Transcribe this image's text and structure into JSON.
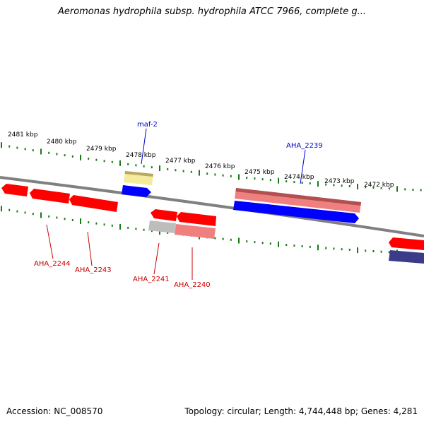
{
  "title": "Aeromonas hydrophila subsp. hydrophila ATCC 7966, complete g...",
  "footer": {
    "accession": "Accession: NC_008570",
    "summary": "Topology: circular; Length: 4,744,448 bp; Genes: 4,281"
  },
  "ruler": {
    "labels": [
      "2481 kbp",
      "2480 kbp",
      "2479 kbp",
      "2478 kbp",
      "2477 kbp",
      "2476 kbp",
      "2475 kbp",
      "2474 kbp",
      "2473 kbp",
      "2472 kbp"
    ]
  },
  "genes": {
    "labels": [
      "maf-2",
      "AHA_2239",
      "AHA_2244",
      "AHA_2243",
      "AHA_2241",
      "AHA_2240"
    ]
  },
  "colors": {
    "backbone": "#808080",
    "tick": "#1a7a1a",
    "gene_red": "#ff0000",
    "gene_pink": "#f08080",
    "gene_blue": "#0000ff",
    "gene_yellow": "#f5eb9c",
    "gene_gray": "#bdbdbd",
    "gene_navy": "#3b3b8a",
    "label_blue": "#0000cc",
    "label_red": "#cc0000"
  }
}
